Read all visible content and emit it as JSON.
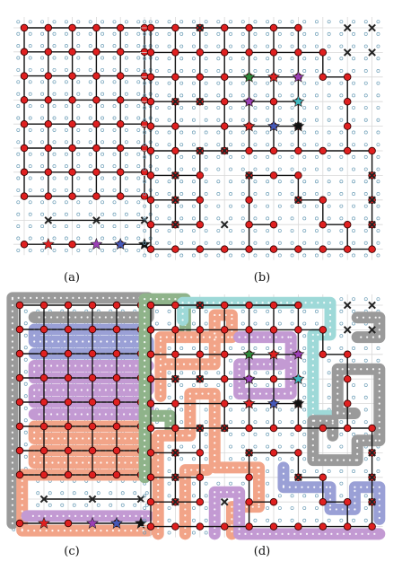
{
  "panels": [
    {
      "id": "a",
      "caption": "(a)",
      "cols": 6,
      "rows": 10
    },
    {
      "id": "b",
      "caption": "(b)",
      "cols": 10,
      "rows": 10
    },
    {
      "id": "c",
      "caption": "(c)",
      "cols": 6,
      "rows": 10
    },
    {
      "id": "d",
      "caption": "(d)",
      "cols": 10,
      "rows": 10
    }
  ],
  "colors": {
    "grid_line": "#d8d8d8",
    "small_dot": "#6e9fb8",
    "node_fill": "#e02020",
    "node_stroke": "#3a0000",
    "edge": "#111111",
    "cross": "#222222",
    "star_red": "#e02020",
    "star_purple": "#9b3fb5",
    "star_blue": "#4658b8",
    "star_black": "#111111",
    "star_green": "#2d8a3a",
    "star_cyan": "#3fb8bf",
    "path_gray": "#9a9a9a",
    "path_blue": "#9aa0d6",
    "path_purple": "#c39ad3",
    "path_salmon": "#f2a488",
    "path_green": "#8fb38a",
    "path_cyan": "#9ed9d8"
  }
}
